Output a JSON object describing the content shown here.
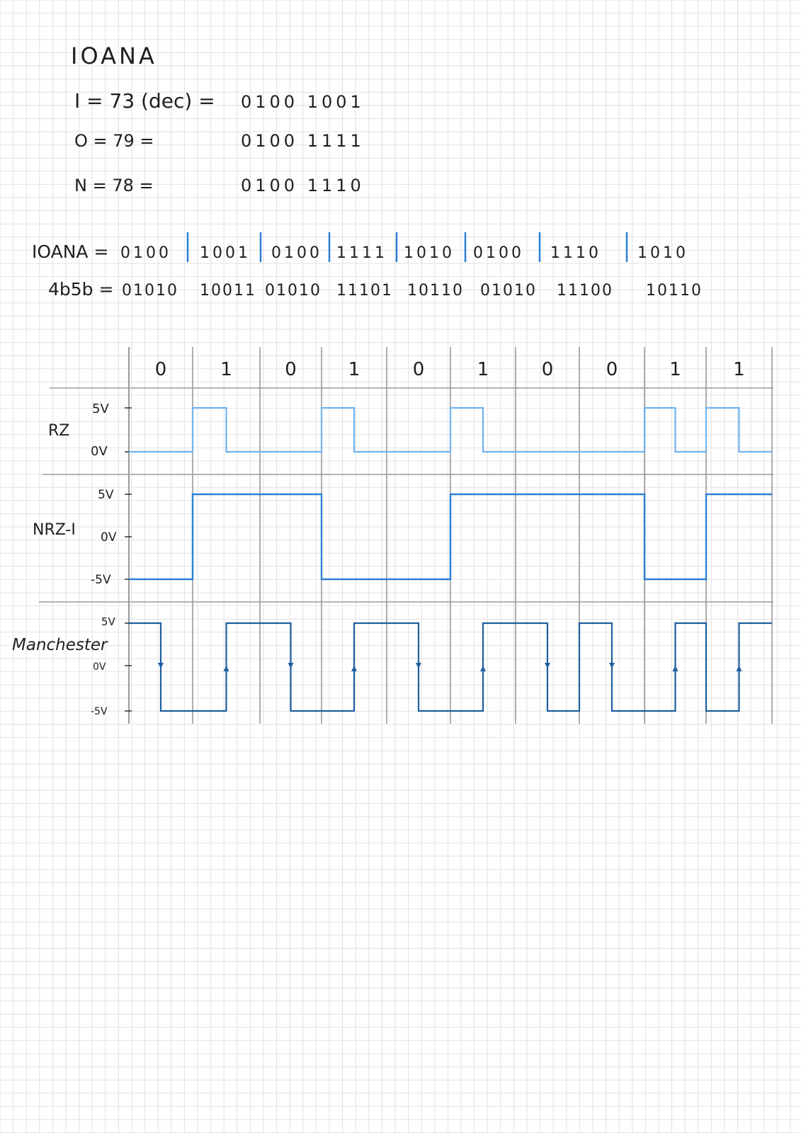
{
  "notes": {
    "title": "IOANA",
    "lines": [
      {
        "lhs": "I = 73 (dec) =",
        "bits": "0100 1001"
      },
      {
        "lhs": "O = 79 =",
        "bits": "0100 1111"
      },
      {
        "lhs": "N = 78 =",
        "bits": "0100 1110"
      }
    ],
    "ioana_label": "IOANA =",
    "ioana_groups": [
      "0100",
      "1001",
      "0100",
      "1111",
      "1010",
      "0100",
      "1110",
      "1010"
    ],
    "fourb_label": "4b5b =",
    "fourb_groups": [
      "01010",
      "10011",
      "01010",
      "11101",
      "10110",
      "01010",
      "11100",
      "10110"
    ]
  },
  "diagram": {
    "bits": [
      "0",
      "1",
      "0",
      "1",
      "0",
      "1",
      "0",
      "0",
      "1",
      "1"
    ],
    "panels": [
      {
        "name": "RZ",
        "ticks": [
          "5V",
          "0V"
        ]
      },
      {
        "name": "NRZ-I",
        "ticks": [
          "5V",
          "0V",
          "-5V"
        ]
      },
      {
        "name": "Manchester",
        "ticks": [
          "5V",
          "0V",
          "-5V"
        ]
      }
    ],
    "colors": {
      "rz": "#6fb3f0",
      "nrzi": "#2a80d6",
      "manchester": "#1f5e9e",
      "grid": "#e2e2e2",
      "axis": "#9a9a9a"
    }
  }
}
